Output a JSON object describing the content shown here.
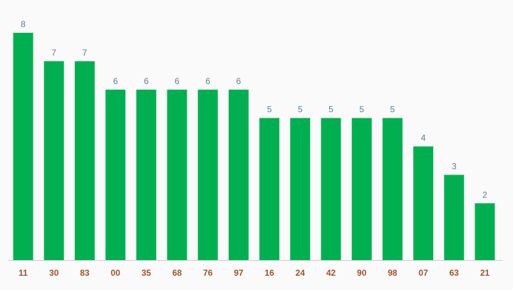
{
  "chart_data": {
    "type": "bar",
    "categories": [
      "11",
      "30",
      "83",
      "00",
      "35",
      "68",
      "76",
      "97",
      "16",
      "24",
      "42",
      "90",
      "98",
      "07",
      "63",
      "21"
    ],
    "values": [
      8,
      7,
      7,
      6,
      6,
      6,
      6,
      6,
      5,
      5,
      5,
      5,
      5,
      4,
      3,
      2
    ],
    "title": "",
    "xlabel": "",
    "ylabel": "",
    "ylim": [
      0,
      8
    ],
    "grid": false,
    "data_labels": true,
    "colors": {
      "bar": "#00b050",
      "data_label": "#5b7f95",
      "tick_label": "#a0522d",
      "axis": "#cccccc",
      "background": "#fafafa"
    }
  }
}
